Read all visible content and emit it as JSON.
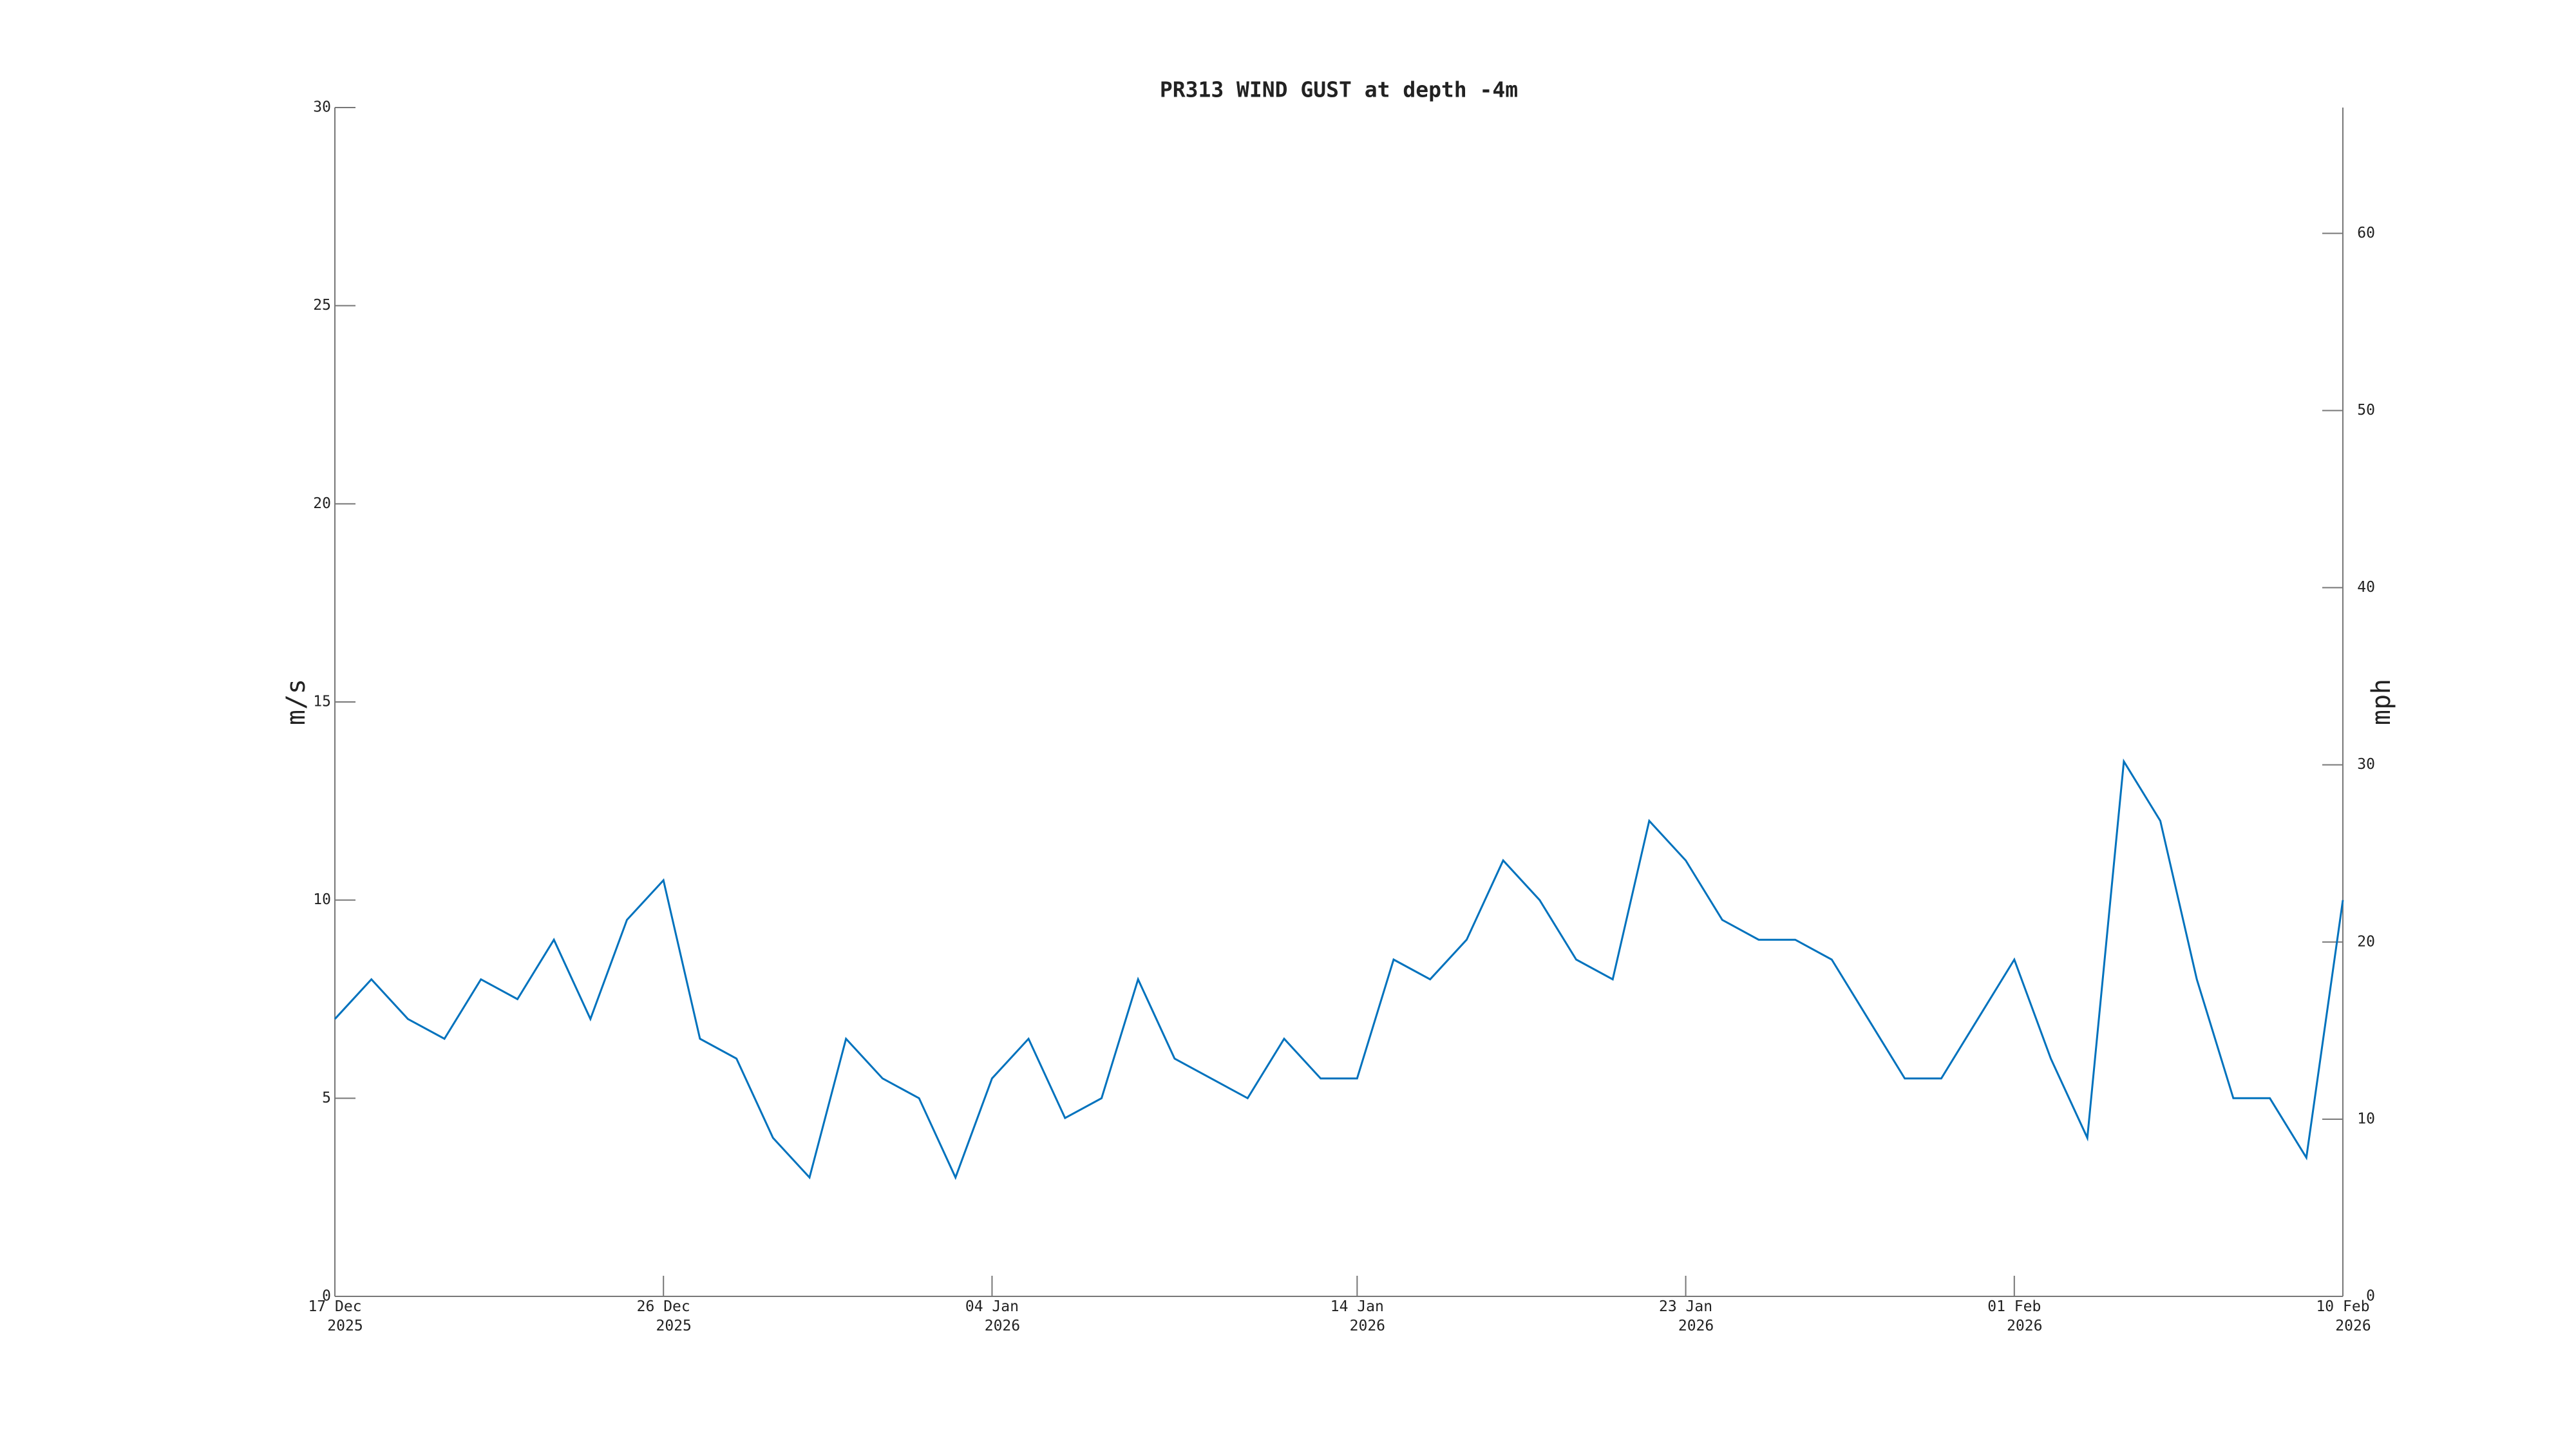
{
  "chart_data": {
    "type": "line",
    "title": "PR313 WIND GUST at depth -4m",
    "y_label": "m/s",
    "y2_label": "mph",
    "x": [
      "2025-12-17",
      "2025-12-18",
      "2025-12-19",
      "2025-12-20",
      "2025-12-21",
      "2025-12-22",
      "2025-12-23",
      "2025-12-24",
      "2025-12-25",
      "2025-12-26",
      "2025-12-27",
      "2025-12-28",
      "2025-12-29",
      "2025-12-30",
      "2025-12-31",
      "2026-01-01",
      "2026-01-02",
      "2026-01-03",
      "2026-01-04",
      "2026-01-05",
      "2026-01-06",
      "2026-01-07",
      "2026-01-08",
      "2026-01-09",
      "2026-01-10",
      "2026-01-11",
      "2026-01-12",
      "2026-01-13",
      "2026-01-14",
      "2026-01-15",
      "2026-01-16",
      "2026-01-17",
      "2026-01-18",
      "2026-01-19",
      "2026-01-20",
      "2026-01-21",
      "2026-01-22",
      "2026-01-23",
      "2026-01-24",
      "2026-01-25",
      "2026-01-26",
      "2026-01-27",
      "2026-01-28",
      "2026-01-29",
      "2026-01-30",
      "2026-01-31",
      "2026-02-01",
      "2026-02-02",
      "2026-02-03",
      "2026-02-04",
      "2026-02-05",
      "2026-02-06",
      "2026-02-07",
      "2026-02-08",
      "2026-02-09",
      "2026-02-10"
    ],
    "series": [
      {
        "name": "wind gust",
        "color": "#0072bd",
        "values": [
          7,
          8,
          7,
          6.5,
          8,
          7.5,
          9,
          7,
          9.5,
          10.5,
          6.5,
          6,
          4,
          3,
          6.5,
          5.5,
          5,
          3,
          5.5,
          6.5,
          4.5,
          5,
          8,
          6,
          5.5,
          5,
          6.5,
          5.5,
          5.5,
          8.5,
          8,
          9,
          11,
          10,
          8.5,
          8,
          12,
          11,
          9.5,
          9,
          9,
          8.5,
          7,
          5.5,
          5.5,
          7,
          8.5,
          6,
          4,
          13.5,
          12,
          8,
          5,
          5,
          3.5,
          10
        ]
      }
    ],
    "xlim": [
      "2025-12-17",
      "2026-02-10"
    ],
    "xticks": [
      {
        "value": "2025-12-17",
        "label": "17 Dec\n2025"
      },
      {
        "value": "2025-12-26",
        "label": "26 Dec\n2025"
      },
      {
        "value": "2026-01-04",
        "label": "04 Jan\n2026"
      },
      {
        "value": "2026-01-14",
        "label": "14 Jan\n2026"
      },
      {
        "value": "2026-01-23",
        "label": "23 Jan\n2026"
      },
      {
        "value": "2026-02-01",
        "label": "01 Feb\n2026"
      },
      {
        "value": "2026-02-10",
        "label": "10 Feb\n2026"
      }
    ],
    "ylim": [
      0,
      30
    ],
    "yticks": [
      0,
      5,
      10,
      15,
      20,
      25,
      30
    ],
    "y2lim": [
      0,
      67.1
    ],
    "y2ticks": [
      0,
      10,
      20,
      30,
      40,
      50,
      60
    ]
  }
}
